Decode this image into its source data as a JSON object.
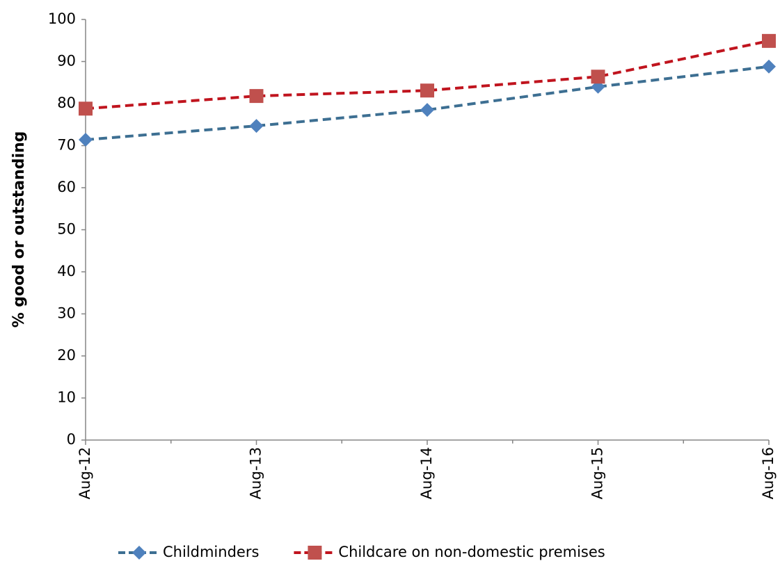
{
  "chart_data": {
    "type": "line",
    "y_label": "% good or outstanding",
    "categories": [
      "Aug-12",
      "Aug-13",
      "Aug-14",
      "Aug-15",
      "Aug-16"
    ],
    "series": [
      {
        "name": "Childminders",
        "color": "#3d6f92",
        "marker_color": "#4f81bd",
        "marker": "diamond",
        "values": [
          71.4,
          74.7,
          78.5,
          84.0,
          88.8
        ]
      },
      {
        "name": "Childcare on non-domestic premises",
        "color": "#c0141e",
        "marker_color": "#c0504d",
        "marker": "square",
        "values": [
          78.8,
          81.8,
          83.1,
          86.4,
          94.9
        ]
      }
    ],
    "ylim": [
      0,
      100
    ],
    "yticks": [
      0,
      10,
      20,
      30,
      40,
      50,
      60,
      70,
      80,
      90,
      100
    ],
    "grid": false,
    "legend": "bottom"
  }
}
